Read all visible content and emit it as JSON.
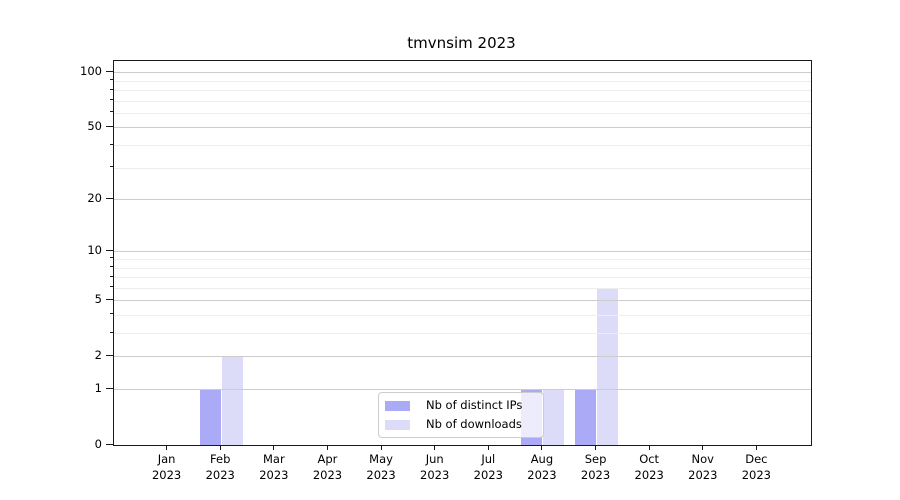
{
  "chart_data": {
    "type": "bar",
    "title": "tmvnsim 2023",
    "categories": [
      "Jan",
      "Feb",
      "Mar",
      "Apr",
      "May",
      "Jun",
      "Jul",
      "Aug",
      "Sep",
      "Oct",
      "Nov",
      "Dec"
    ],
    "year_label": "2023",
    "series": [
      {
        "name": "Nb of distinct IPs",
        "color": "#aaaaf6",
        "values": [
          0,
          1,
          0,
          0,
          0,
          0,
          0,
          1,
          1,
          0,
          0,
          0
        ]
      },
      {
        "name": "Nb of downloads",
        "color": "#dcdcf8",
        "values": [
          0,
          2,
          0,
          0,
          0,
          0,
          0,
          1,
          6,
          0,
          0,
          0
        ]
      }
    ],
    "yscale": "log1p",
    "ylim": [
      0,
      115
    ],
    "y_ticks": [
      0,
      1,
      2,
      5,
      10,
      20,
      50,
      100
    ],
    "y_minor_ticks": [
      3,
      4,
      6,
      7,
      8,
      9,
      30,
      40,
      60,
      70,
      80,
      90
    ],
    "xlabel": "",
    "ylabel": "",
    "grid": true,
    "legend_position": "lower center",
    "colors": {
      "grid_major": "#cccccc",
      "grid_minor": "#ededed",
      "axis": "#1a1a1a"
    }
  }
}
